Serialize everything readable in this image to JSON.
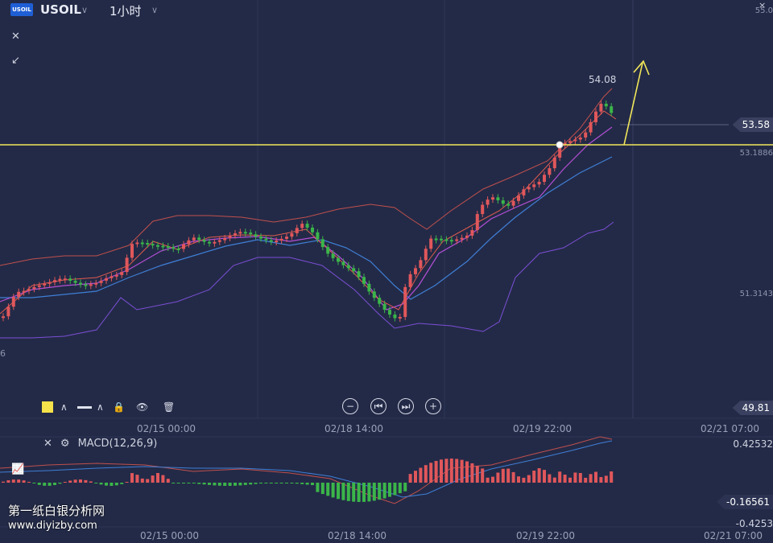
{
  "header": {
    "logo_text": "USOIL",
    "symbol": "USOIL",
    "timeframe": "1小时"
  },
  "price_axis": {
    "labels": [
      {
        "text": "55.0"
      },
      {
        "text": "53.1886"
      },
      {
        "text": "51.3143"
      }
    ],
    "current_price_tag": "53.58",
    "lower_price_tag": "49.81",
    "left_edge_label": "6"
  },
  "annotations": {
    "high_label": "54.08"
  },
  "time_axis": {
    "labels": [
      "02/15 00:00",
      "02/18 14:00",
      "02/19 22:00",
      "02/21 07:00"
    ]
  },
  "indicator": {
    "name": "MACD(12,26,9)",
    "labels": [
      {
        "text": "0.42532"
      },
      {
        "text": "-0.16561"
      },
      {
        "text": "-0.4253"
      }
    ]
  },
  "watermark": {
    "line1": "第一纸白银分析网",
    "line2": "www.diyizby.com"
  },
  "colors": {
    "background": "#232a47",
    "up": "#e0575b",
    "down": "#3bb54a",
    "support_line": "#f2e75a",
    "arrow": "#f2e75a",
    "bb_upper": "#c0504d",
    "bb_lower": "#7b4fd6",
    "ma_blue": "#3f7fd6",
    "ma_purple": "#b34fd6"
  }
}
